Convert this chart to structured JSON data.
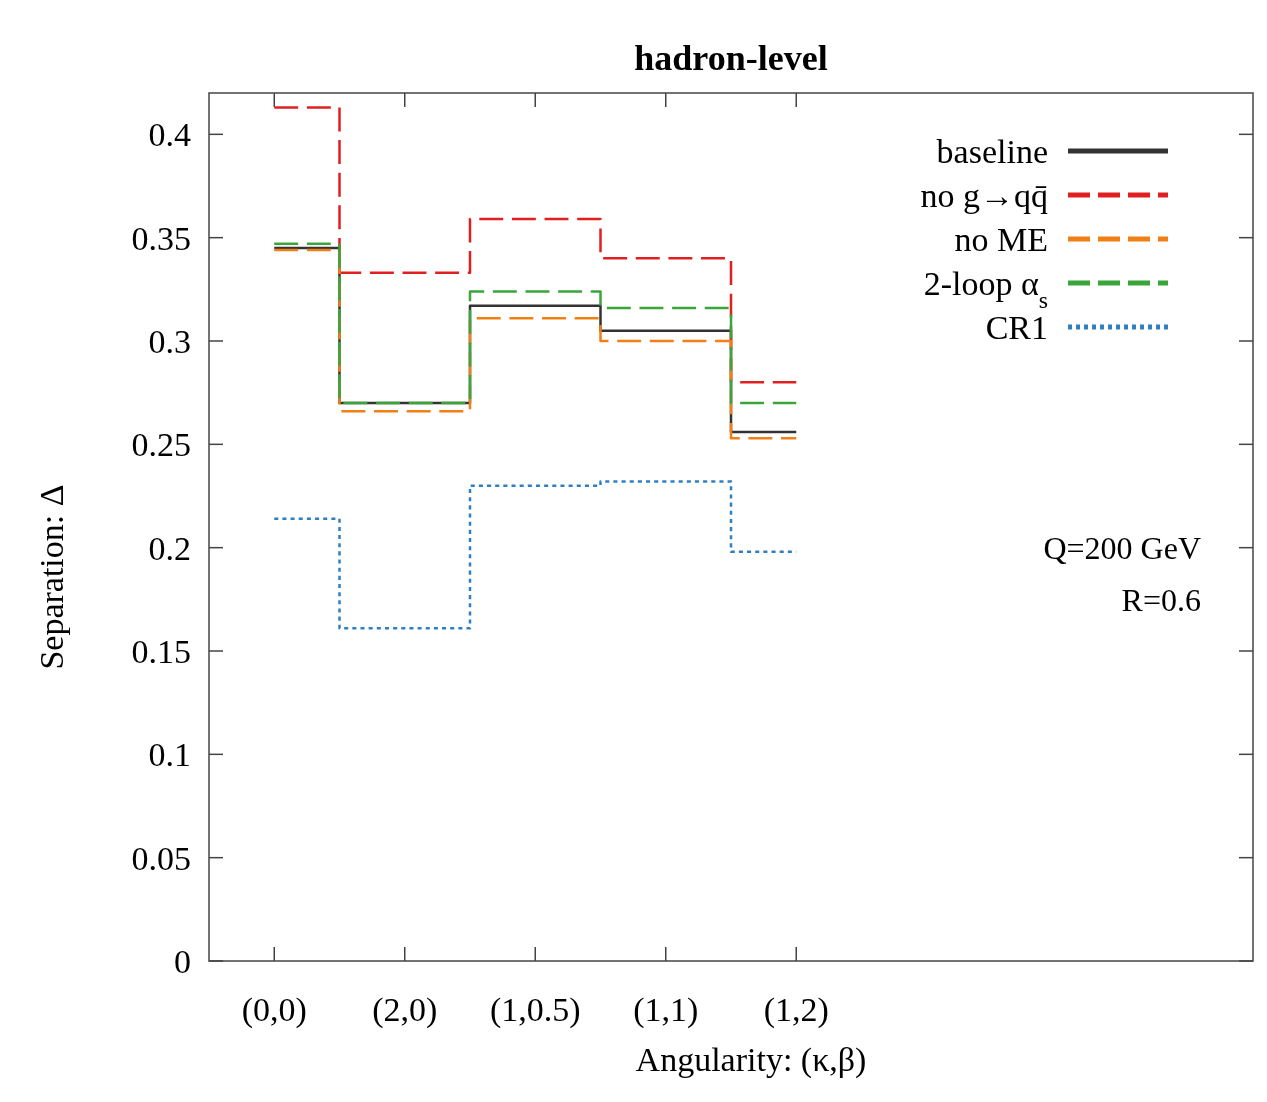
{
  "chart_data": {
    "type": "step",
    "title": "hadron-level",
    "xlabel": "Angularity: (κ,β)",
    "ylabel": "Separation: Δ",
    "categories": [
      "(0,0)",
      "(2,0)",
      "(1,0.5)",
      "(1,1)",
      "(1,2)"
    ],
    "series": [
      {
        "name": "baseline",
        "color": "#333333",
        "line_style": "solid",
        "values": [
          0.345,
          0.27,
          0.317,
          0.305,
          0.256
        ]
      },
      {
        "name": "no g→qq̄",
        "color": "#e02020",
        "line_style": "dashed",
        "values": [
          0.413,
          0.333,
          0.359,
          0.34,
          0.28
        ]
      },
      {
        "name": "no ME",
        "color": "#f07f16",
        "line_style": "dashed",
        "values": [
          0.344,
          0.266,
          0.311,
          0.3,
          0.253
        ]
      },
      {
        "name": "2-loop α$_{s}$",
        "color": "#3aa53a",
        "line_style": "dashed",
        "values": [
          0.347,
          0.27,
          0.324,
          0.316,
          0.27
        ]
      },
      {
        "name": "CR1",
        "color": "#2f7fc1",
        "line_style": "dotted",
        "values": [
          0.214,
          0.161,
          0.23,
          0.232,
          0.198
        ]
      }
    ],
    "ylim": [
      0,
      0.42
    ],
    "yticks": [
      0,
      0.05,
      0.1,
      0.15,
      0.2,
      0.25,
      0.3,
      0.35,
      0.4
    ],
    "legend": "top right",
    "grid": false,
    "annotations": [
      "Q=200 GeV",
      "R=0.6"
    ]
  }
}
